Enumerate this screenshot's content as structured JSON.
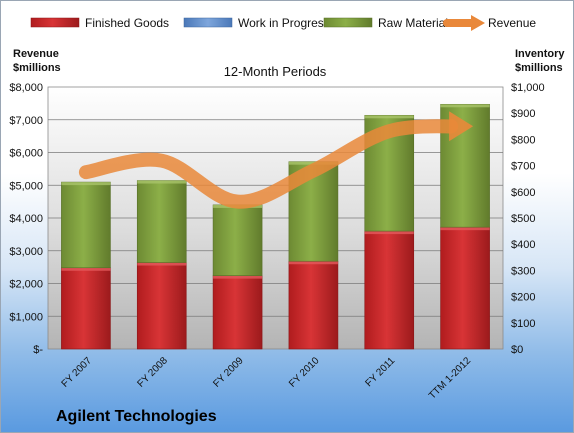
{
  "chart_data": {
    "type": "bar",
    "stacked": true,
    "subtitle": "12-Month Periods",
    "categories": [
      "FY 2007",
      "FY 2008",
      "FY 2009",
      "FY 2010",
      "FY 2011",
      "TTM 1-2012"
    ],
    "series": [
      {
        "name": "Finished Goods",
        "axis": "right",
        "color": "#c0282a",
        "values": [
          310,
          330,
          280,
          335,
          450,
          465
        ]
      },
      {
        "name": "Work in Progress",
        "axis": "right",
        "color": "#5b88c8",
        "values": [
          0,
          0,
          0,
          0,
          0,
          0
        ]
      },
      {
        "name": "Raw Materials",
        "axis": "right",
        "color": "#7a9a3c",
        "values": [
          327,
          313,
          270,
          380,
          442,
          469
        ]
      },
      {
        "name": "Revenue",
        "axis": "left",
        "type": "line",
        "color": "#e9883a",
        "values": [
          5400,
          5750,
          4500,
          5450,
          6650,
          6800
        ]
      }
    ],
    "left_axis": {
      "title_line1": "Revenue",
      "title_line2": "$millions",
      "ylim": [
        0,
        8000
      ],
      "ticks": [
        "$-",
        "$1,000",
        "$2,000",
        "$3,000",
        "$4,000",
        "$5,000",
        "$6,000",
        "$7,000",
        "$8,000"
      ]
    },
    "right_axis": {
      "title_line1": "Inventory",
      "title_line2": "$millions",
      "ylim": [
        0,
        1000
      ],
      "ticks": [
        "$0",
        "$100",
        "$200",
        "$300",
        "$400",
        "$500",
        "$600",
        "$700",
        "$800",
        "$900",
        "$1,000"
      ]
    },
    "grid": true,
    "legend_position": "top"
  },
  "company": "Agilent Technologies"
}
